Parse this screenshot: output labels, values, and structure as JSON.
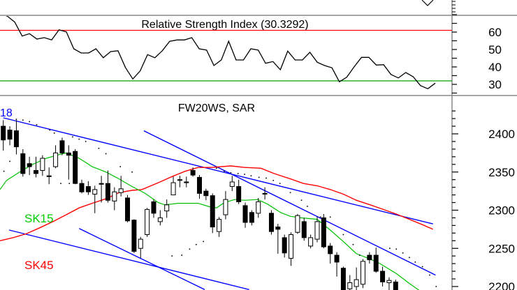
{
  "chart_data": [
    {
      "type": "line",
      "title": "Relative Strength Index (30.3292)",
      "yticks": [
        "60",
        "50",
        "40",
        "30"
      ],
      "ylim": [
        25,
        74
      ],
      "overbought": 61,
      "oversold": 32,
      "colors": {
        "line": "#000000",
        "overbought": "#ff0000",
        "oversold": "#00a000"
      },
      "values": [
        70.7,
        69.1,
        65.7,
        57.7,
        59.1,
        56,
        56.8,
        55.5,
        61.3,
        60.1,
        50.4,
        48,
        48,
        50.4,
        45.3,
        48.8,
        49.3,
        39.7,
        33.1,
        37.7,
        47.1,
        45.3,
        49.3,
        54.7,
        55.5,
        55.5,
        56.8,
        50.4,
        49.7,
        40.8,
        44,
        54.7,
        44,
        44,
        50.4,
        49.7,
        42.1,
        43.1,
        38.4,
        49.1,
        44,
        44,
        48.4,
        42.7,
        40.8,
        39.5,
        31.5,
        34.1,
        40,
        45.5,
        45.5,
        41.1,
        41.3,
        35.7,
        33.7,
        36.8,
        34.4,
        29.3,
        27.5,
        30.7
      ]
    },
    {
      "type": "candlestick",
      "title": "FW20WS, SAR",
      "label_18": "18",
      "yticks": [
        "2400",
        "2350",
        "2300",
        "2250",
        "2200"
      ],
      "ylim": [
        2190,
        2425
      ],
      "colors": {
        "up": "#ffffff",
        "down": "#000000",
        "sma15": "#00c000",
        "sma45": "#ff0000",
        "trend": "#0000ff",
        "sar": "#000000",
        "label18": "#0000ff"
      },
      "legend": {
        "sma15": "SK15",
        "sma45": "SK45"
      },
      "ohlc": [
        [
          2410,
          2418,
          2378,
          2392
        ],
        [
          2405,
          2410,
          2385,
          2393
        ],
        [
          2404,
          2418,
          2373,
          2383
        ],
        [
          2374,
          2380,
          2344,
          2348
        ],
        [
          2361,
          2370,
          2346,
          2357
        ],
        [
          2352,
          2370,
          2343,
          2348
        ],
        [
          2352,
          2372,
          2345,
          2368
        ],
        [
          2345,
          2356,
          2334,
          2344
        ],
        [
          2357,
          2385,
          2355,
          2375
        ],
        [
          2391,
          2395,
          2372,
          2375
        ],
        [
          2375,
          2385,
          2340,
          2372
        ],
        [
          2377,
          2380,
          2334,
          2335
        ],
        [
          2335,
          2340,
          2322,
          2324
        ],
        [
          2331,
          2338,
          2320,
          2324
        ],
        [
          2321,
          2332,
          2296,
          2327
        ],
        [
          2335,
          2345,
          2310,
          2334
        ],
        [
          2335,
          2352,
          2310,
          2313
        ],
        [
          2312,
          2330,
          2300,
          2324
        ],
        [
          2323,
          2345,
          2318,
          2328
        ],
        [
          2316,
          2320,
          2284,
          2286
        ],
        [
          2287,
          2288,
          2244,
          2246
        ],
        [
          2250,
          2265,
          2237,
          2262
        ],
        [
          2268,
          2303,
          2265,
          2301
        ],
        [
          2311,
          2314,
          2290,
          2296
        ],
        [
          2285,
          2300,
          2280,
          2290
        ],
        [
          2299,
          2314,
          2290,
          2307
        ],
        [
          2320,
          2344,
          2320,
          2336
        ],
        [
          2340,
          2345,
          2330,
          2340
        ],
        [
          2337,
          2344,
          2330,
          2336
        ],
        [
          2352,
          2356,
          2344,
          2346
        ],
        [
          2343,
          2346,
          2315,
          2322
        ],
        [
          2325,
          2328,
          2313,
          2319
        ],
        [
          2319,
          2322,
          2270,
          2278
        ],
        [
          2272,
          2291,
          2265,
          2288
        ],
        [
          2294,
          2325,
          2288,
          2314
        ],
        [
          2331,
          2345,
          2325,
          2337
        ],
        [
          2331,
          2340,
          2308,
          2311
        ],
        [
          2306,
          2310,
          2277,
          2284
        ],
        [
          2297,
          2300,
          2280,
          2284
        ],
        [
          2296,
          2316,
          2290,
          2311
        ],
        [
          2322,
          2330,
          2314,
          2321
        ],
        [
          2296,
          2300,
          2268,
          2272
        ],
        [
          2278,
          2282,
          2243,
          2275
        ],
        [
          2264,
          2268,
          2238,
          2244
        ],
        [
          2237,
          2271,
          2227,
          2268
        ],
        [
          2271,
          2295,
          2269,
          2293
        ],
        [
          2285,
          2290,
          2260,
          2264
        ],
        [
          2253,
          2268,
          2250,
          2264
        ],
        [
          2262,
          2292,
          2258,
          2285
        ],
        [
          2290,
          2295,
          2250,
          2252
        ],
        [
          2253,
          2257,
          2230,
          2243
        ],
        [
          2241,
          2245,
          2213,
          2232
        ],
        [
          2224,
          2226,
          2185,
          2190
        ],
        [
          2197,
          2215,
          2190,
          2205
        ],
        [
          2200,
          2225,
          2195,
          2209
        ],
        [
          2203,
          2236,
          2198,
          2233
        ],
        [
          2241,
          2245,
          2230,
          2235
        ],
        [
          2241,
          2251,
          2218,
          2220
        ],
        [
          2220,
          2226,
          2200,
          2206
        ],
        [
          2205,
          2212,
          2190,
          2208
        ],
        [
          2206,
          2209,
          2185,
          2195
        ]
      ],
      "sma15": [
        [
          -0.5,
          2327
        ],
        [
          0.5,
          2339
        ],
        [
          2.5,
          2350
        ],
        [
          4.5,
          2360
        ],
        [
          6.6,
          2368
        ],
        [
          8.6,
          2373
        ],
        [
          9.6,
          2375
        ],
        [
          11.6,
          2368
        ],
        [
          13.6,
          2357
        ],
        [
          15.7,
          2350
        ],
        [
          17.7,
          2341
        ],
        [
          19.7,
          2331
        ],
        [
          21.7,
          2322
        ],
        [
          23.7,
          2310
        ],
        [
          24.7,
          2307
        ],
        [
          26.8,
          2309
        ],
        [
          29.8,
          2309
        ],
        [
          31.3,
          2305
        ],
        [
          32.6,
          2303
        ],
        [
          33.8,
          2310
        ],
        [
          35.4,
          2314
        ],
        [
          36.9,
          2313
        ],
        [
          38.9,
          2314
        ],
        [
          40.4,
          2308
        ],
        [
          42.4,
          2297
        ],
        [
          43.9,
          2292
        ],
        [
          45.5,
          2290
        ],
        [
          48,
          2288
        ],
        [
          50,
          2274
        ],
        [
          52,
          2259
        ],
        [
          54,
          2243
        ],
        [
          56.1,
          2236
        ],
        [
          57.6,
          2230
        ],
        [
          60.1,
          2217
        ],
        [
          62.1,
          2204
        ],
        [
          63.6,
          2195
        ]
      ],
      "sma45": [
        [
          -0.5,
          2260
        ],
        [
          1.5,
          2264
        ],
        [
          3.5,
          2269
        ],
        [
          5.6,
          2277
        ],
        [
          7.6,
          2285
        ],
        [
          9.6,
          2294
        ],
        [
          11.6,
          2303
        ],
        [
          13.6,
          2309
        ],
        [
          15.7,
          2315
        ],
        [
          17.7,
          2323
        ],
        [
          19.7,
          2326
        ],
        [
          21.2,
          2327
        ],
        [
          23.7,
          2336
        ],
        [
          25.8,
          2344
        ],
        [
          27.8,
          2351
        ],
        [
          29.8,
          2356
        ],
        [
          31.8,
          2356
        ],
        [
          34.8,
          2358
        ],
        [
          36.9,
          2356
        ],
        [
          39.4,
          2355
        ],
        [
          41.4,
          2348
        ],
        [
          43.9,
          2341
        ],
        [
          45.9,
          2335
        ],
        [
          48,
          2332
        ],
        [
          50,
          2327
        ],
        [
          52,
          2321
        ],
        [
          54,
          2313
        ],
        [
          56.1,
          2307
        ],
        [
          58.1,
          2301
        ],
        [
          60.1,
          2295
        ],
        [
          62.1,
          2288
        ],
        [
          64.1,
          2281
        ],
        [
          65.7,
          2275
        ]
      ],
      "trendlines": [
        [
          [
            0,
            2421
          ],
          [
            65.7,
            2282
          ]
        ],
        [
          [
            21.5,
            2404
          ],
          [
            66.1,
            2215
          ]
        ],
        [
          [
            0.9,
            2274
          ],
          [
            37.6,
            2196
          ]
        ],
        [
          [
            11.6,
            2276
          ],
          [
            30.8,
            2196
          ]
        ]
      ],
      "sar": [
        [
          0.1,
          2351
        ],
        [
          1,
          2364
        ],
        [
          2,
          2419
        ],
        [
          3,
          2418
        ],
        [
          4,
          2416
        ],
        [
          5.1,
          2412
        ],
        [
          7.1,
          2405
        ],
        [
          7.8,
          2401
        ],
        [
          8.8,
          2335
        ],
        [
          10.1,
          2335
        ],
        [
          10.6,
          2396
        ],
        [
          11.6,
          2393
        ],
        [
          12.6,
          2390
        ],
        [
          14.6,
          2381
        ],
        [
          15.7,
          2374
        ],
        [
          17.9,
          2357
        ],
        [
          19.7,
          2350
        ],
        [
          25.8,
          2240
        ],
        [
          27.3,
          2241
        ],
        [
          28.5,
          2249
        ],
        [
          29.5,
          2255
        ],
        [
          30.6,
          2259
        ],
        [
          32.6,
          2355
        ],
        [
          33.8,
          2351
        ],
        [
          34.8,
          2349
        ],
        [
          35.9,
          2348
        ],
        [
          36.9,
          2347
        ],
        [
          37.9,
          2345
        ],
        [
          39.1,
          2343
        ],
        [
          40.2,
          2342
        ],
        [
          41.3,
          2339
        ],
        [
          42.3,
          2335
        ],
        [
          43.9,
          2323
        ],
        [
          45.6,
          2313
        ],
        [
          46.5,
          2305
        ],
        [
          48.5,
          2291
        ],
        [
          50,
          2291
        ],
        [
          52,
          2268
        ],
        [
          53.5,
          2255
        ],
        [
          54.5,
          2241
        ],
        [
          59.1,
          2250
        ],
        [
          60.1,
          2249
        ],
        [
          61.1,
          2244
        ],
        [
          62.1,
          2238
        ],
        [
          63,
          2232
        ],
        [
          64.1,
          2226
        ],
        [
          65.2,
          2215
        ],
        [
          66.2,
          2200
        ]
      ]
    }
  ]
}
